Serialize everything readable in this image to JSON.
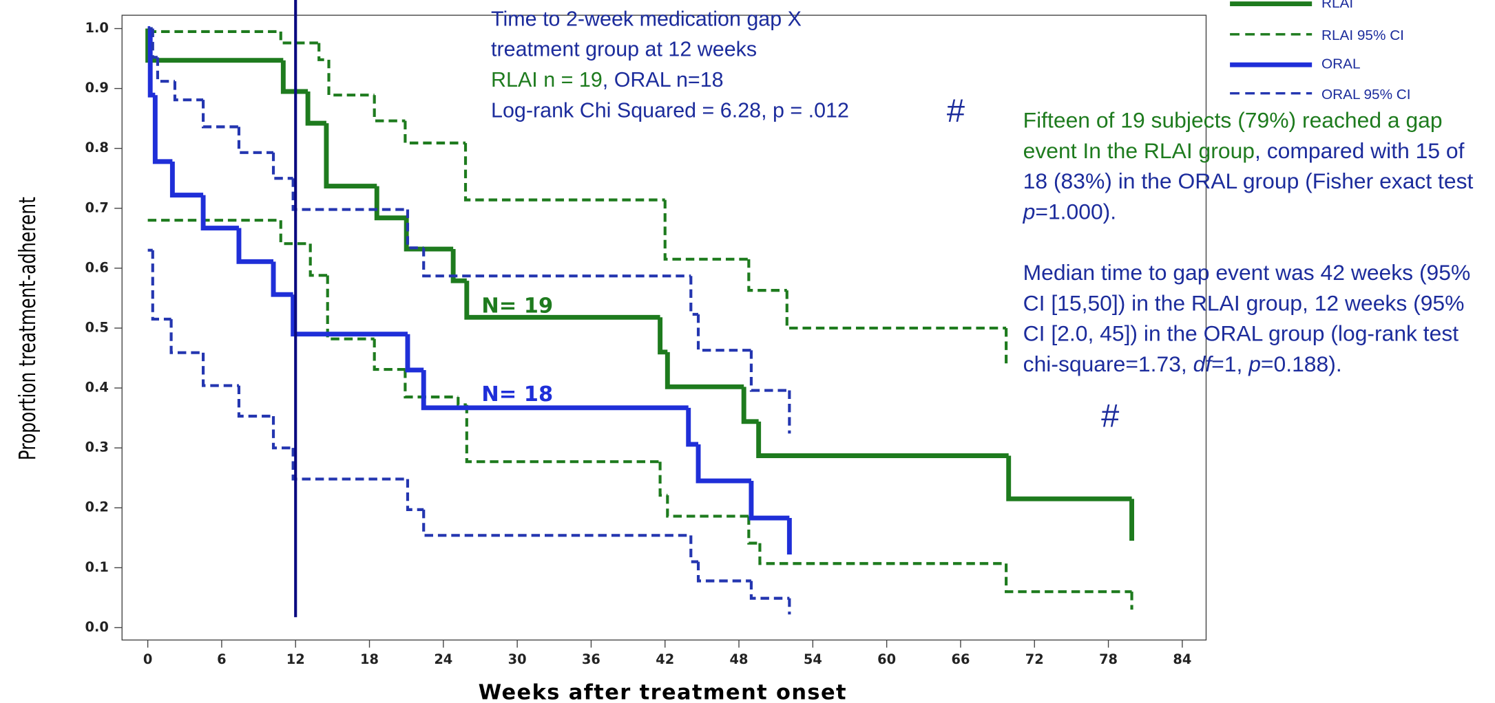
{
  "chart_data": {
    "type": "step",
    "xlabel": "Weeks after treatment onset",
    "ylabel": "Proportion treatment-adherent",
    "xlim": [
      0,
      84
    ],
    "ylim": [
      0,
      1
    ],
    "xticks": [
      0,
      6,
      12,
      18,
      24,
      30,
      36,
      42,
      48,
      54,
      60,
      66,
      72,
      78,
      84
    ],
    "yticks": [
      {
        "value": 0,
        "label": "0.0"
      },
      0.1,
      0.2,
      0.3,
      0.4,
      0.5,
      0.6,
      0.7,
      0.8,
      0.9,
      {
        "value": 1,
        "label": "1.0"
      }
    ],
    "reference_line_x": 12,
    "series": [
      {
        "name": "RLAI",
        "color": "#1e7b1e",
        "style": "solid",
        "x": [
          0,
          0,
          11,
          13,
          14.5,
          18.6,
          21,
          24.8,
          25.9,
          41.6,
          42.2,
          48.4,
          49.6,
          69.9,
          79.9
        ],
        "values": [
          1.0,
          0.947,
          0.895,
          0.842,
          0.737,
          0.684,
          0.632,
          0.579,
          0.518,
          0.46,
          0.402,
          0.344,
          0.287,
          0.215,
          0.145
        ]
      },
      {
        "name": "RLAI 95% CI",
        "color": "#1e7b1e",
        "style": "dashed",
        "upper": {
          "x": [
            0,
            10.8,
            13.9,
            14.7,
            18.4,
            20.9,
            25.8,
            42,
            48.8,
            51.9,
            69.7
          ],
          "values": [
            0.995,
            0.976,
            0.948,
            0.889,
            0.846,
            0.809,
            0.714,
            0.615,
            0.563,
            0.5,
            0.437
          ]
        },
        "lower": {
          "x": [
            0,
            10.8,
            13.2,
            14.6,
            18.4,
            20.9,
            25.2,
            25.9,
            41.6,
            42.2,
            48.8,
            49.7,
            69.7,
            79.9
          ],
          "values": [
            0.68,
            0.641,
            0.588,
            0.482,
            0.431,
            0.385,
            0.372,
            0.277,
            0.221,
            0.186,
            0.141,
            0.107,
            0.06,
            0.03
          ]
        }
      },
      {
        "name": "ORAL",
        "color": "#1f2fd8",
        "style": "solid",
        "x": [
          0,
          0.2,
          0.6,
          2,
          4.5,
          7.4,
          10.2,
          11.8,
          21.1,
          22.4,
          43.9,
          44.7,
          49,
          52.1
        ],
        "values": [
          1.0,
          0.889,
          0.778,
          0.722,
          0.667,
          0.611,
          0.556,
          0.49,
          0.43,
          0.367,
          0.306,
          0.245,
          0.183,
          0.122
        ]
      },
      {
        "name": "ORAL 95% CI",
        "color": "#2436b0",
        "style": "dashed",
        "upper": {
          "x": [
            0,
            0.4,
            0.8,
            2.2,
            4.5,
            7.4,
            10.2,
            11.8,
            21.1,
            22.4,
            44.1,
            44.7,
            49,
            52.1
          ],
          "values": [
            1.0,
            0.952,
            0.912,
            0.881,
            0.836,
            0.793,
            0.75,
            0.698,
            0.634,
            0.587,
            0.523,
            0.463,
            0.396,
            0.324
          ]
        },
        "lower": {
          "x": [
            0,
            0.4,
            1.9,
            4.5,
            7.4,
            10.2,
            11.8,
            21.1,
            22.4,
            44.1,
            44.7,
            49,
            52.1
          ],
          "values": [
            0.63,
            0.515,
            0.459,
            0.404,
            0.353,
            0.3,
            0.248,
            0.197,
            0.154,
            0.11,
            0.078,
            0.049,
            0.022
          ]
        }
      }
    ],
    "curve_labels": [
      {
        "text": "N= 19",
        "color": "#1e7b1e"
      },
      {
        "text": "N= 18",
        "color": "#1f2fd8"
      }
    ],
    "annotations": [
      {
        "lines": [
          [
            {
              "text": "Time to 2-week medication gap X",
              "color": "#1c2c9c"
            }
          ],
          [
            {
              "text": "treatment group at 12 weeks",
              "color": "#1c2c9c"
            }
          ],
          [
            {
              "text": "RLAI n = 19",
              "color": "#1e7b1e"
            },
            {
              "text": ", ORAL n=18",
              "color": "#1c2c9c"
            }
          ],
          [
            {
              "text": "Log-rank Chi Squared = 6.28, p = .012",
              "color": "#1c2c9c"
            }
          ]
        ]
      },
      {
        "paragraphs": [
          [
            {
              "text": "Fifteen of 19 subjects (79%) reached a gap event In the RLAI group",
              "color": "#1e7b1e",
              "italic": false
            },
            {
              "text": ", compared with 15 of 18 (83%) in the ORAL group (Fisher exact test ",
              "color": "#1c2c9c",
              "italic": false
            },
            {
              "text": "p",
              "color": "#1c2c9c",
              "italic": true
            },
            {
              "text": "=1.000).",
              "color": "#1c2c9c",
              "italic": false
            }
          ],
          [
            {
              "text": "Median time to gap event was 42 weeks (95% CI [15,50]) in the RLAI group, 12 weeks (95% CI [2.0, 45]) in the ORAL group (log-rank test chi-square=1.73, ",
              "color": "#1c2c9c",
              "italic": false
            },
            {
              "text": "df",
              "color": "#1c2c9c",
              "italic": true
            },
            {
              "text": "=1, ",
              "color": "#1c2c9c",
              "italic": false
            },
            {
              "text": "p",
              "color": "#1c2c9c",
              "italic": true
            },
            {
              "text": "=0.188).",
              "color": "#1c2c9c",
              "italic": false
            }
          ]
        ]
      }
    ],
    "marks": [
      "#",
      "#"
    ]
  }
}
